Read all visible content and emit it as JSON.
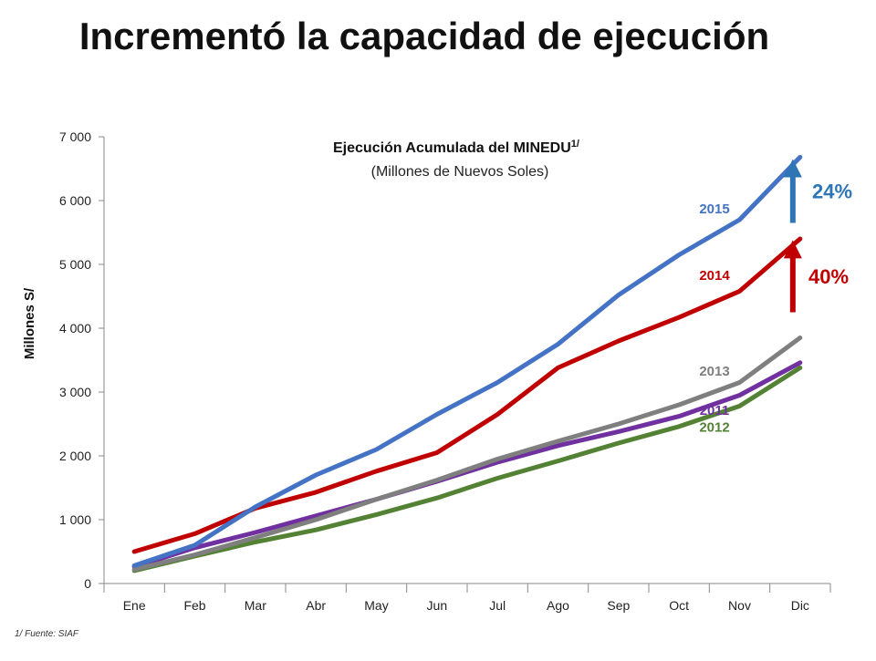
{
  "title": "Incrementó la capacidad de ejecución",
  "footnote": "1/ Fuente: SIAF",
  "chart_data": {
    "type": "line",
    "title": "Ejecución Acumulada del MINEDU",
    "title_superscript": "1/",
    "subtitle": "(Millones de Nuevos Soles)",
    "ylabel": "Millones S/",
    "xlabel": "",
    "ylim": [
      0,
      7000
    ],
    "yticks": [
      0,
      1000,
      2000,
      3000,
      4000,
      5000,
      6000,
      7000
    ],
    "ytick_labels": [
      "0",
      "1 000",
      "2 000",
      "3 000",
      "4 000",
      "5 000",
      "6 000",
      "7 000"
    ],
    "grid": false,
    "categories": [
      "Ene",
      "Feb",
      "Mar",
      "Abr",
      "May",
      "Jun",
      "Jul",
      "Ago",
      "Sep",
      "Oct",
      "Nov",
      "Dic"
    ],
    "series": [
      {
        "name": "2015",
        "color": "#4472C4",
        "values": [
          280,
          600,
          1200,
          1700,
          2100,
          2650,
          3150,
          3750,
          4520,
          5150,
          5700,
          6680
        ]
      },
      {
        "name": "2014",
        "color": "#C00000",
        "values": [
          500,
          780,
          1180,
          1430,
          1760,
          2050,
          2650,
          3380,
          3800,
          4170,
          4580,
          5400
        ]
      },
      {
        "name": "2013",
        "color": "#7F7F7F",
        "values": [
          220,
          450,
          720,
          1000,
          1320,
          1620,
          1950,
          2230,
          2500,
          2800,
          3150,
          3850
        ]
      },
      {
        "name": "2011",
        "color": "#7030A0",
        "values": [
          260,
          560,
          800,
          1060,
          1320,
          1600,
          1900,
          2160,
          2380,
          2620,
          2950,
          3460
        ]
      },
      {
        "name": "2012",
        "color": "#548235",
        "values": [
          200,
          430,
          650,
          840,
          1080,
          1340,
          1650,
          1920,
          2200,
          2460,
          2780,
          3380
        ]
      }
    ],
    "annotations": [
      {
        "label": "24%",
        "color": "#2E75B6"
      },
      {
        "label": "40%",
        "color": "#C00000"
      }
    ]
  }
}
